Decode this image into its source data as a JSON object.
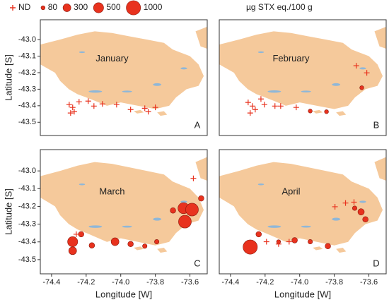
{
  "legend": {
    "nd_label": "ND",
    "sizes": [
      80,
      300,
      500,
      1000
    ],
    "unit": "µg STX eq./100 g",
    "color": "#e8321e"
  },
  "chart_data": [
    {
      "type": "scatter",
      "label": "January",
      "panel": "A",
      "ylabel": "Latitude [S]",
      "xlim": [
        -74.465,
        -73.5
      ],
      "ylim": [
        -43.58,
        -42.88
      ],
      "yticks": [
        {
          "value": -43,
          "label": "-43.0"
        },
        -43.1,
        -43.2,
        -43.3,
        -43.4,
        -43.5
      ],
      "color": "#e8321e",
      "land_color": "#f5c99b",
      "water_color": "#8fb7d8",
      "nd": {
        "x": [
          -74.298,
          -74.278,
          -74.29,
          -74.269,
          -74.241,
          -74.188,
          -74.155,
          -74.106,
          -74.024,
          -73.943,
          -73.861,
          -73.841,
          -73.8
        ],
        "y": [
          -43.393,
          -43.41,
          -43.444,
          -43.436,
          -43.376,
          -43.372,
          -43.402,
          -43.389,
          -43.393,
          -43.423,
          -43.415,
          -43.436,
          -43.41
        ]
      }
    },
    {
      "type": "scatter",
      "label": "February",
      "panel": "B",
      "xlim": [
        -74.465,
        -73.5
      ],
      "ylim": [
        -43.58,
        -42.88
      ],
      "color": "#e8321e",
      "land_color": "#f5c99b",
      "water_color": "#8fb7d8",
      "nd": {
        "x": [
          -74.298,
          -74.273,
          -74.286,
          -74.257,
          -74.224,
          -74.204,
          -74.143,
          -74.11,
          -74.02,
          -73.673,
          -73.612
        ],
        "y": [
          -43.38,
          -43.402,
          -43.444,
          -43.423,
          -43.359,
          -43.393,
          -43.402,
          -43.402,
          -43.41,
          -43.158,
          -43.201
        ]
      },
      "detected": {
        "x": [
          -73.939,
          -73.845,
          -73.641
        ],
        "y": [
          -43.432,
          -43.436,
          -43.291
        ],
        "sizes": [
          80,
          80,
          80
        ]
      }
    },
    {
      "type": "scatter",
      "label": "March",
      "panel": "C",
      "ylabel": "Latitude [S]",
      "xlabel": "Longitude [W]",
      "xlim": [
        -74.465,
        -73.5
      ],
      "ylim": [
        -43.58,
        -42.88
      ],
      "yticks": [
        {
          "value": -43,
          "label": "-43.0"
        },
        -43.1,
        -43.2,
        -43.3,
        -43.4,
        -43.5
      ],
      "xticks": [
        -74.4,
        -74.2,
        {
          "value": -74,
          "label": "-74.0"
        },
        -73.8,
        -73.6
      ],
      "color": "#e8321e",
      "land_color": "#f5c99b",
      "water_color": "#8fb7d8",
      "nd": {
        "x": [
          -73.58,
          -74.257
        ],
        "y": [
          -43.042,
          -43.357
        ]
      },
      "detected": {
        "x": [
          -74.278,
          -74.278,
          -74.229,
          -74.167,
          -74.033,
          -73.943,
          -73.861,
          -73.792,
          -73.637,
          -73.588,
          -73.629,
          -73.535,
          -73.698
        ],
        "y": [
          -43.399,
          -43.45,
          -43.357,
          -43.42,
          -43.399,
          -43.412,
          -43.424,
          -43.399,
          -43.21,
          -43.218,
          -43.286,
          -43.155,
          -43.223
        ],
        "sizes": [
          500,
          300,
          150,
          150,
          300,
          150,
          100,
          100,
          600,
          800,
          800,
          150,
          150
        ]
      }
    },
    {
      "type": "scatter",
      "label": "April",
      "panel": "D",
      "xlabel": "Longitude [W]",
      "xlim": [
        -74.465,
        -73.5
      ],
      "ylim": [
        -43.58,
        -42.88
      ],
      "xticks": [
        -74.4,
        -74.2,
        {
          "value": -74,
          "label": "-74.0"
        },
        -73.8,
        -73.6
      ],
      "color": "#e8321e",
      "land_color": "#f5c99b",
      "water_color": "#8fb7d8",
      "nd": {
        "x": [
          -74.192,
          -74.122,
          -73.796,
          -73.735,
          -73.686,
          -74.061
        ],
        "y": [
          -43.399,
          -43.412,
          -43.202,
          -43.181,
          -43.176,
          -43.399
        ]
      },
      "detected": {
        "x": [
          -74.286,
          -74.237,
          -74.122,
          -74.029,
          -73.939,
          -73.837,
          -73.645,
          -73.62,
          -73.682
        ],
        "y": [
          -43.429,
          -43.357,
          -43.399,
          -43.391,
          -43.399,
          -43.424,
          -43.231,
          -43.273,
          -43.21
        ],
        "sizes": [
          1000,
          150,
          80,
          150,
          100,
          150,
          200,
          150,
          100
        ]
      }
    }
  ]
}
